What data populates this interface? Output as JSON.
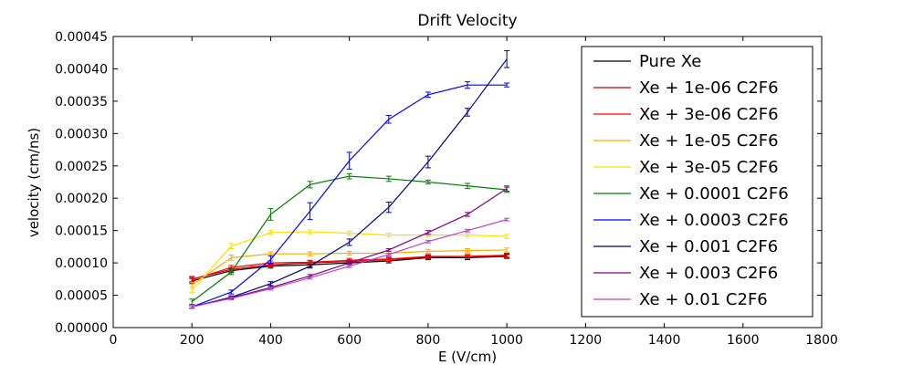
{
  "chart_data": {
    "type": "line",
    "title": "Drift Velocity",
    "xlabel": "E (V/cm)",
    "ylabel": "velocity (cm/ns)",
    "xlim": [
      0,
      1800
    ],
    "ylim": [
      0,
      0.00045
    ],
    "xticks": [
      0,
      200,
      400,
      600,
      800,
      1000,
      1200,
      1400,
      1600,
      1800
    ],
    "xtick_labels": [
      "0",
      "200",
      "400",
      "600",
      "800",
      "1000",
      "1200",
      "1400",
      "1600",
      "1800"
    ],
    "yticks": [
      0,
      5e-05,
      0.0001,
      0.00015,
      0.0002,
      0.00025,
      0.0003,
      0.00035,
      0.0004,
      0.00045
    ],
    "ytick_labels": [
      "0.00000",
      "0.00005",
      "0.00010",
      "0.00015",
      "0.00020",
      "0.00025",
      "0.00030",
      "0.00035",
      "0.00040",
      "0.00045"
    ],
    "grid": false,
    "legend_position": "top-right",
    "x": [
      200,
      300,
      400,
      500,
      600,
      700,
      800,
      900,
      1000
    ],
    "series": [
      {
        "name": "Pure Xe",
        "color": "#000000",
        "values": [
          7.2e-05,
          8.8e-05,
          9.5e-05,
          9.7e-05,
          0.0001,
          0.000103,
          0.000108,
          0.000108,
          0.00011
        ],
        "errors": [
          4e-06,
          3e-06,
          3e-06,
          3e-06,
          3e-06,
          3e-06,
          3e-06,
          3e-06,
          3e-06
        ]
      },
      {
        "name": "Xe + 1e-06 C2F6",
        "color": "#cc0000",
        "values": [
          7.5e-05,
          9e-05,
          9.7e-05,
          0.0001,
          0.000102,
          0.000105,
          0.000109,
          0.00011,
          0.000111
        ],
        "errors": [
          4e-06,
          3e-06,
          3e-06,
          3e-06,
          3e-06,
          3e-06,
          3e-06,
          3e-06,
          3e-06
        ]
      },
      {
        "name": "Xe + 3e-06 C2F6",
        "color": "#ff0000",
        "values": [
          7.4e-05,
          9.3e-05,
          0.0001,
          0.000101,
          0.000104,
          0.000106,
          0.00011,
          0.00011,
          0.000112
        ],
        "errors": [
          4e-06,
          3e-06,
          3e-06,
          3e-06,
          3e-06,
          3e-06,
          3e-06,
          3e-06,
          3e-06
        ]
      },
      {
        "name": "Xe + 1e-05 C2F6",
        "color": "#ffaa00",
        "values": [
          6.6e-05,
          0.000108,
          0.000114,
          0.000114,
          0.000115,
          0.000115,
          0.000118,
          0.000119,
          0.00012
        ],
        "errors": [
          4e-06,
          4e-06,
          3e-06,
          3e-06,
          3e-06,
          3e-06,
          3e-06,
          3e-06,
          3e-06
        ]
      },
      {
        "name": "Xe + 3e-05 C2F6",
        "color": "#ffdd00",
        "values": [
          5.8e-05,
          0.000126,
          0.000147,
          0.000148,
          0.000146,
          0.000143,
          0.000143,
          0.000143,
          0.000141
        ],
        "errors": [
          4e-06,
          4e-06,
          3e-06,
          3e-06,
          3e-06,
          3e-06,
          3e-06,
          3e-06,
          3e-06
        ]
      },
      {
        "name": "Xe + 0.0001 C2F6",
        "color": "#008000",
        "values": [
          4e-05,
          8.6e-05,
          0.000175,
          0.000221,
          0.000234,
          0.00023,
          0.000225,
          0.000219,
          0.000213
        ],
        "errors": [
          4e-06,
          4e-06,
          9e-06,
          5e-06,
          4e-06,
          4e-06,
          3e-06,
          4e-06,
          4e-06
        ]
      },
      {
        "name": "Xe + 0.0003 C2F6",
        "color": "#0000ff",
        "values": [
          3.2e-05,
          5.5e-05,
          0.000105,
          0.00018,
          0.000258,
          0.000322,
          0.00036,
          0.000375,
          0.000375
        ],
        "errors": [
          2e-06,
          3e-06,
          6e-06,
          1.3e-05,
          1.3e-05,
          6e-06,
          4e-06,
          5e-06,
          3e-06
        ]
      },
      {
        "name": "Xe + 0.001 C2F6",
        "color": "#000080",
        "values": [
          3.2e-05,
          4.7e-05,
          6.8e-05,
          9.5e-05,
          0.000132,
          0.000186,
          0.000256,
          0.000333,
          0.000415
        ],
        "errors": [
          2e-06,
          2e-06,
          3e-06,
          3e-06,
          5e-06,
          8e-06,
          9e-06,
          6e-06,
          1.3e-05
        ]
      },
      {
        "name": "Xe + 0.003 C2F6",
        "color": "#800080",
        "values": [
          3.2e-05,
          4.6e-05,
          6.2e-05,
          8e-05,
          0.0001,
          0.00012,
          0.000147,
          0.000175,
          0.000215
        ],
        "errors": [
          2e-06,
          2e-06,
          2e-06,
          2e-06,
          2e-06,
          2e-06,
          3e-06,
          3e-06,
          4e-06
        ]
      },
      {
        "name": "Xe + 0.01 C2F6",
        "color": "#bb44cc",
        "values": [
          3.2e-05,
          4.5e-05,
          6e-05,
          7.7e-05,
          9.5e-05,
          0.000113,
          0.000133,
          0.00015,
          0.000167
        ],
        "errors": [
          2e-06,
          2e-06,
          2e-06,
          2e-06,
          2e-06,
          2e-06,
          2e-06,
          2e-06,
          2e-06
        ]
      }
    ]
  }
}
